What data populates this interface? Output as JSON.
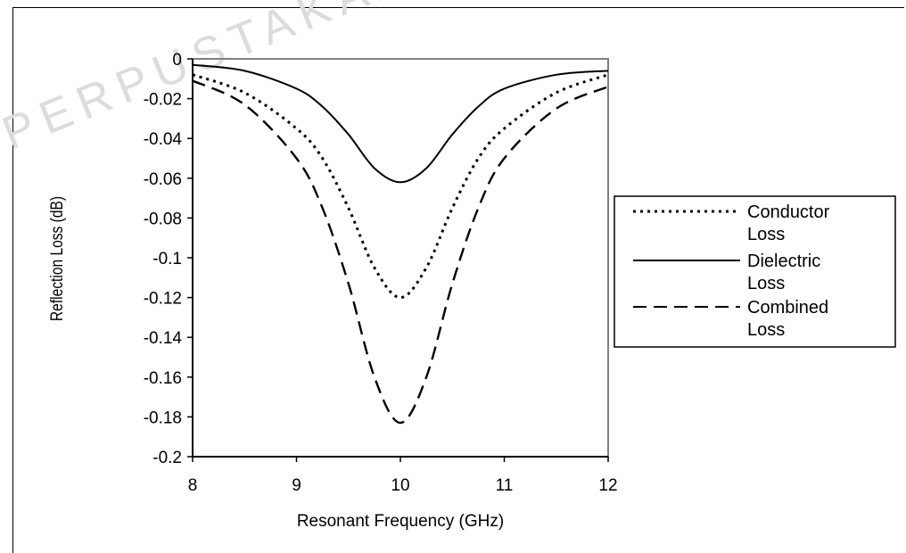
{
  "chart_data": {
    "type": "line",
    "xlabel": "Resonant Frequency (GHz)",
    "ylabel": "Reflection Loss (dB)",
    "xlim": [
      8,
      12
    ],
    "ylim": [
      -0.2,
      0
    ],
    "xticks": [
      "8",
      "9",
      "10",
      "11",
      "12"
    ],
    "yticks": [
      "0",
      "-0.02",
      "-0.04",
      "-0.06",
      "-0.08",
      "-0.1",
      "-0.12",
      "-0.14",
      "-0.16",
      "-0.18",
      "-0.2"
    ],
    "grid": false,
    "legend_position": "right",
    "x": [
      8,
      8.5,
      9,
      9.25,
      9.5,
      9.75,
      10,
      10.25,
      10.5,
      10.75,
      11,
      11.5,
      12
    ],
    "series": [
      {
        "name": "Conductor Loss",
        "style": "dotted",
        "color": "#000000",
        "values": [
          -0.008,
          -0.017,
          -0.035,
          -0.05,
          -0.075,
          -0.105,
          -0.12,
          -0.105,
          -0.075,
          -0.05,
          -0.035,
          -0.017,
          -0.008
        ]
      },
      {
        "name": "Dielectric Loss",
        "style": "solid",
        "color": "#000000",
        "values": [
          -0.003,
          -0.006,
          -0.015,
          -0.024,
          -0.038,
          -0.055,
          -0.062,
          -0.055,
          -0.038,
          -0.024,
          -0.015,
          -0.008,
          -0.006
        ]
      },
      {
        "name": "Combined Loss",
        "style": "dashed",
        "color": "#000000",
        "values": [
          -0.011,
          -0.023,
          -0.05,
          -0.075,
          -0.113,
          -0.16,
          -0.183,
          -0.16,
          -0.113,
          -0.075,
          -0.05,
          -0.025,
          -0.014
        ]
      }
    ]
  },
  "watermark": {
    "text": "PERPUSTAKAAN",
    "color": "#dcdcdc"
  }
}
